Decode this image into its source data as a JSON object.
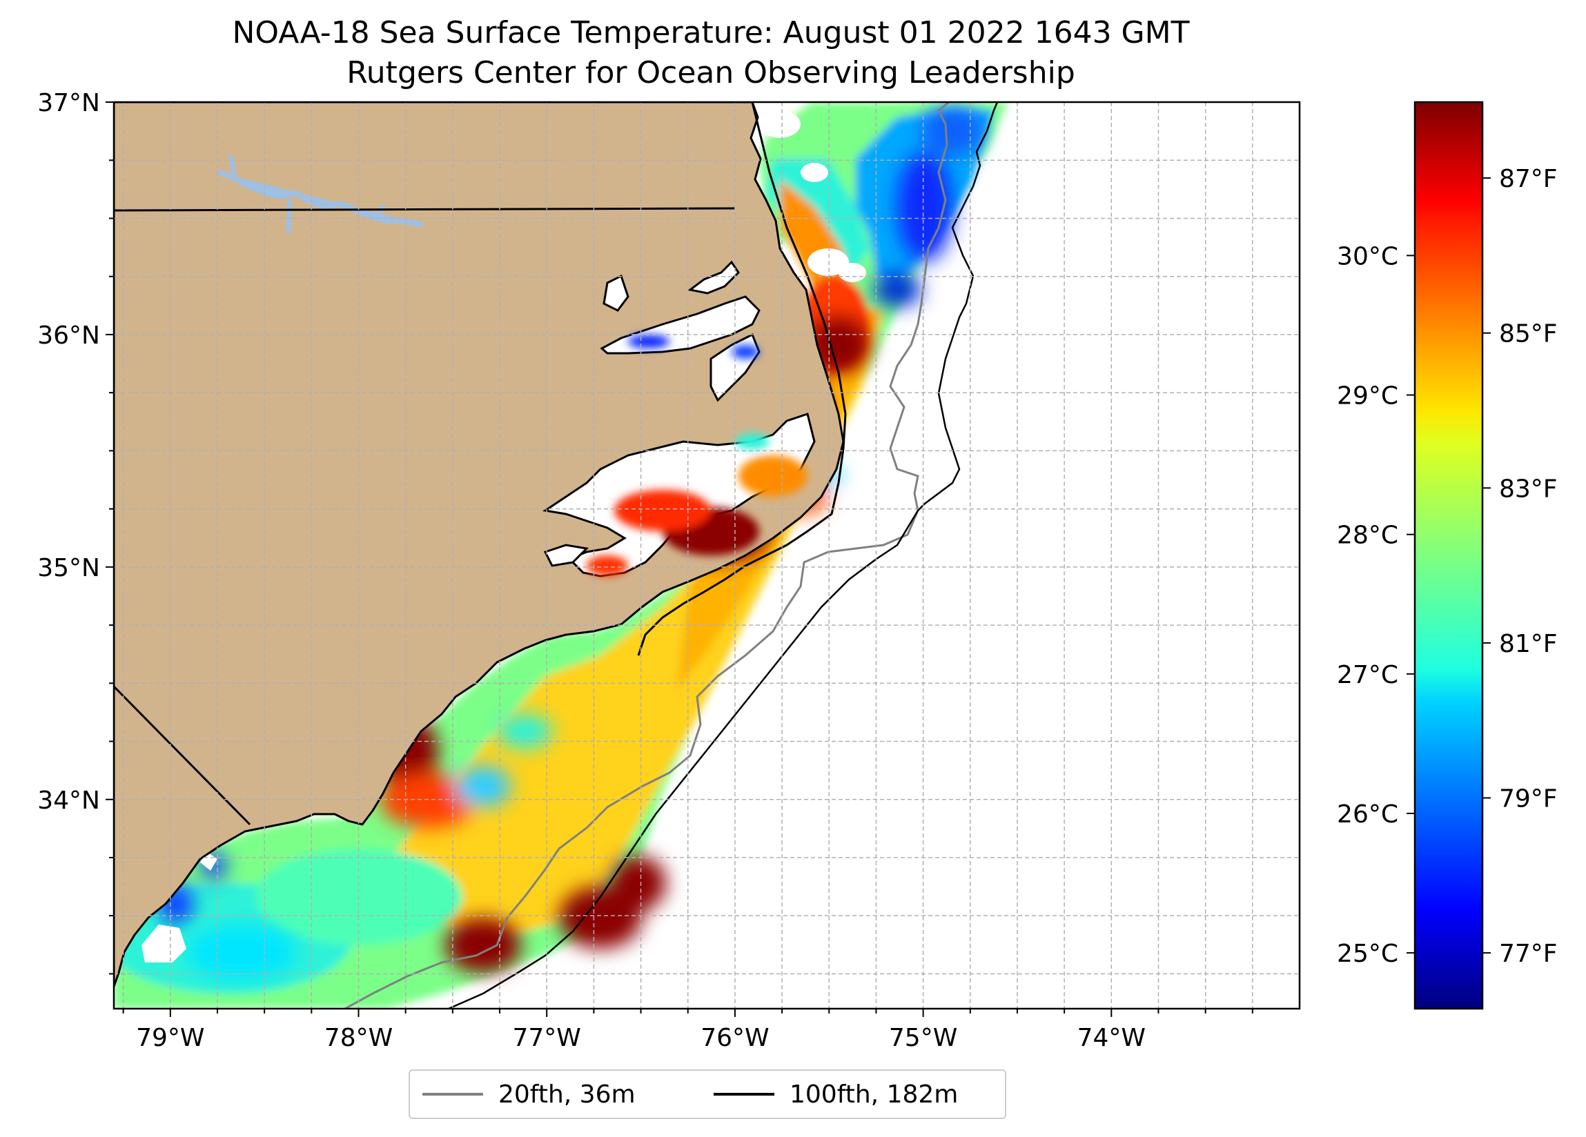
{
  "title": {
    "line1": "NOAA-18 Sea Surface Temperature: August 01 2022 1643 GMT",
    "line2": "Rutgers Center for Ocean Observing Leadership"
  },
  "map": {
    "lon_range": [
      -79.3,
      -73.0
    ],
    "lat_range": [
      33.1,
      37.0
    ],
    "lon_ticks": [
      {
        "value": -79,
        "label": "79°W"
      },
      {
        "value": -78,
        "label": "78°W"
      },
      {
        "value": -77,
        "label": "77°W"
      },
      {
        "value": -76,
        "label": "76°W"
      },
      {
        "value": -75,
        "label": "75°W"
      },
      {
        "value": -74,
        "label": "74°W"
      }
    ],
    "lat_ticks": [
      {
        "value": 37,
        "label": "37°N"
      },
      {
        "value": 36,
        "label": "36°N"
      },
      {
        "value": 35,
        "label": "35°N"
      },
      {
        "value": 34,
        "label": "34°N"
      }
    ],
    "gridlines": true,
    "land_color": "#d2b48c",
    "lake_color": "#9fbfe3"
  },
  "colorbar": {
    "colormap": "jet",
    "celsius_range": [
      24.6,
      31.1
    ],
    "celsius_ticks": [
      {
        "value": 25,
        "label": "25°C"
      },
      {
        "value": 26,
        "label": "26°C"
      },
      {
        "value": 27,
        "label": "27°C"
      },
      {
        "value": 28,
        "label": "28°C"
      },
      {
        "value": 29,
        "label": "29°C"
      },
      {
        "value": 30,
        "label": "30°C"
      }
    ],
    "fahrenheit_ticks": [
      {
        "value": 77,
        "label": "77°F"
      },
      {
        "value": 79,
        "label": "79°F"
      },
      {
        "value": 81,
        "label": "81°F"
      },
      {
        "value": 83,
        "label": "83°F"
      },
      {
        "value": 85,
        "label": "85°F"
      },
      {
        "value": 87,
        "label": "87°F"
      }
    ]
  },
  "legend": {
    "items": [
      {
        "label": "20fth, 36m",
        "color": "#808080"
      },
      {
        "label": "100fth, 182m",
        "color": "#000000"
      }
    ]
  }
}
